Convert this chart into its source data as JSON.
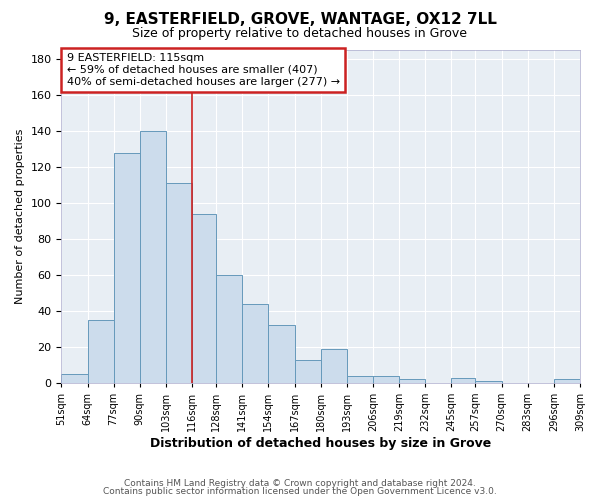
{
  "title": "9, EASTERFIELD, GROVE, WANTAGE, OX12 7LL",
  "subtitle": "Size of property relative to detached houses in Grove",
  "xlabel": "Distribution of detached houses by size in Grove",
  "ylabel": "Number of detached properties",
  "footer_line1": "Contains HM Land Registry data © Crown copyright and database right 2024.",
  "footer_line2": "Contains public sector information licensed under the Open Government Licence v3.0.",
  "bin_labels": [
    "51sqm",
    "64sqm",
    "77sqm",
    "90sqm",
    "103sqm",
    "116sqm",
    "128sqm",
    "141sqm",
    "154sqm",
    "167sqm",
    "180sqm",
    "193sqm",
    "206sqm",
    "219sqm",
    "232sqm",
    "245sqm",
    "257sqm",
    "270sqm",
    "283sqm",
    "296sqm",
    "309sqm"
  ],
  "bar_values": [
    5,
    35,
    128,
    140,
    111,
    94,
    60,
    44,
    32,
    13,
    19,
    4,
    4,
    2,
    0,
    3,
    1,
    0,
    0,
    2
  ],
  "bar_color": "#ccdcec",
  "bar_edge_color": "#6699bb",
  "annotation_title": "9 EASTERFIELD: 115sqm",
  "annotation_line1": "← 59% of detached houses are smaller (407)",
  "annotation_line2": "40% of semi-detached houses are larger (277) →",
  "vline_x": 116,
  "ylim": [
    0,
    185
  ],
  "yticks": [
    0,
    20,
    40,
    60,
    80,
    100,
    120,
    140,
    160,
    180
  ],
  "bin_edges": [
    51,
    64,
    77,
    90,
    103,
    116,
    128,
    141,
    154,
    167,
    180,
    193,
    206,
    219,
    232,
    245,
    257,
    270,
    283,
    296,
    309
  ],
  "bg_color": "#ffffff",
  "plot_bg_color": "#e8eef4",
  "title_fontsize": 11,
  "subtitle_fontsize": 9,
  "xlabel_fontsize": 9,
  "ylabel_fontsize": 8,
  "tick_fontsize": 7,
  "footer_fontsize": 6.5,
  "ann_fontsize": 8
}
